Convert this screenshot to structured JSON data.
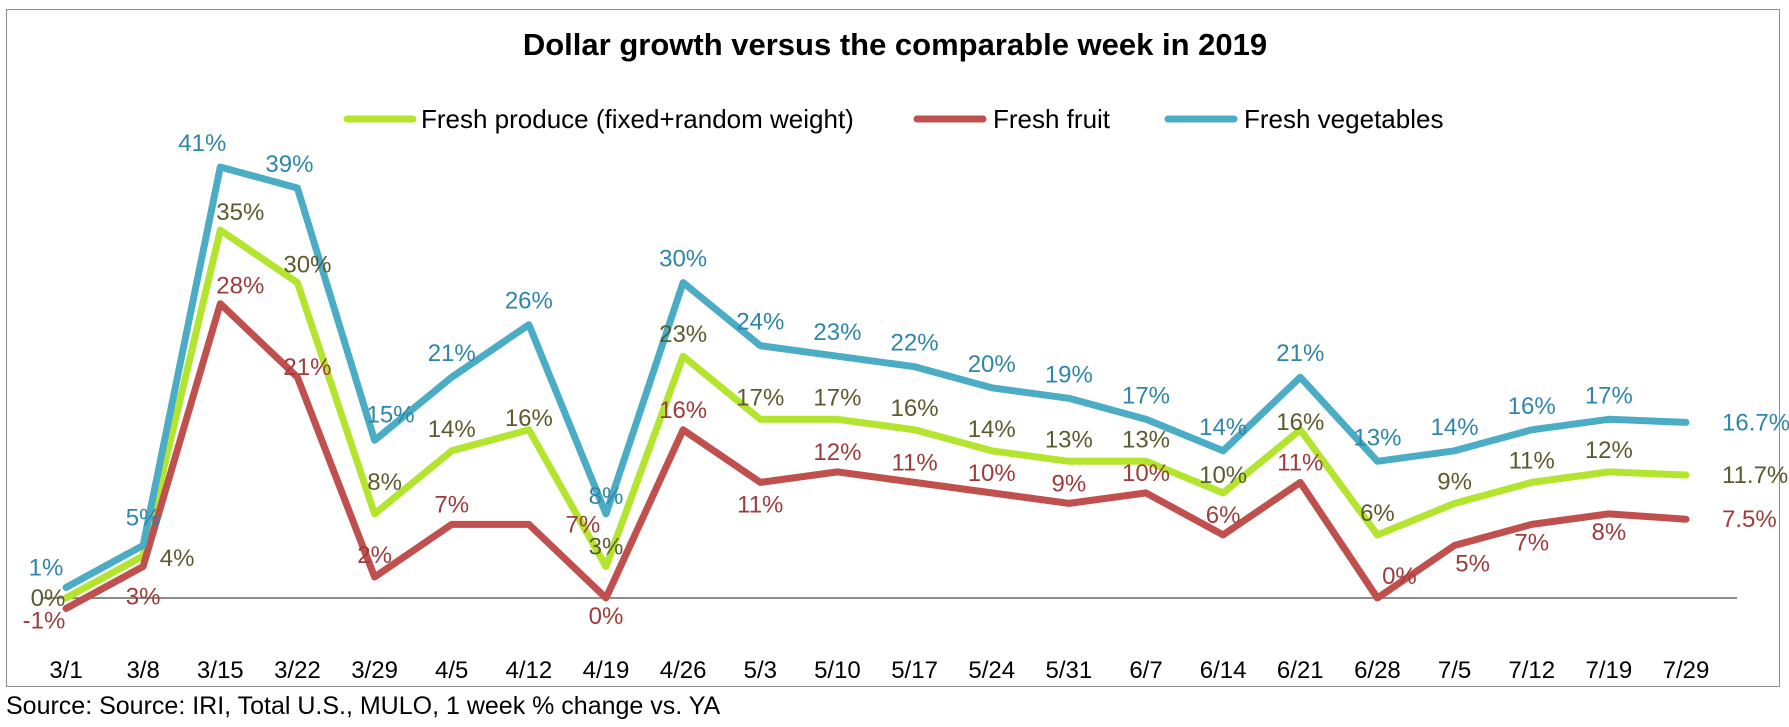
{
  "chart_data": {
    "type": "line",
    "title": "Dollar growth versus the comparable week in 2019",
    "categories": [
      "3/1",
      "3/8",
      "3/15",
      "3/22",
      "3/29",
      "4/5",
      "4/12",
      "4/19",
      "4/26",
      "5/3",
      "5/10",
      "5/17",
      "5/24",
      "5/31",
      "6/7",
      "6/14",
      "6/21",
      "6/28",
      "7/5",
      "7/12",
      "7/19",
      "7/29"
    ],
    "series": [
      {
        "name": "Fresh produce (fixed+random weight)",
        "color": "#b3e52f",
        "label_color": "#5c5a2e",
        "values": [
          0,
          4,
          35,
          30,
          8,
          14,
          16,
          3,
          23,
          17,
          17,
          16,
          14,
          13,
          13,
          10,
          16,
          6,
          9,
          11,
          12,
          11.7
        ],
        "labels": [
          "0%",
          "4%",
          "35%",
          "30%",
          "8%",
          "14%",
          "16%",
          "3%",
          "23%",
          "17%",
          "17%",
          "16%",
          "14%",
          "13%",
          "13%",
          "10%",
          "16%",
          "6%",
          "9%",
          "11%",
          "12%",
          "11.7%"
        ]
      },
      {
        "name": "Fresh fruit",
        "color": "#c0504d",
        "label_color": "#9e3b3b",
        "values": [
          -1,
          3,
          28,
          21,
          2,
          7,
          7,
          0,
          16,
          11,
          12,
          11,
          10,
          9,
          10,
          6,
          11,
          0,
          5,
          7,
          8,
          7.5
        ],
        "labels": [
          "-1%",
          "3%",
          "28%",
          "21%",
          "2%",
          "7%",
          "7%",
          "0%",
          "16%",
          "11%",
          "12%",
          "11%",
          "10%",
          "9%",
          "10%",
          "6%",
          "11%",
          "0%",
          "5%",
          "7%",
          "8%",
          "7.5%"
        ]
      },
      {
        "name": "Fresh vegetables",
        "color": "#4bacc6",
        "label_color": "#2f86a8",
        "values": [
          1,
          5,
          41,
          39,
          15,
          21,
          26,
          8,
          30,
          24,
          23,
          22,
          20,
          19,
          17,
          14,
          21,
          13,
          14,
          16,
          17,
          16.7
        ],
        "labels": [
          "1%",
          "5%",
          "41%",
          "39%",
          "15%",
          "21%",
          "26%",
          "8%",
          "30%",
          "24%",
          "23%",
          "22%",
          "20%",
          "19%",
          "17%",
          "14%",
          "21%",
          "13%",
          "14%",
          "16%",
          "17%",
          "16.7%"
        ]
      }
    ],
    "ylim": [
      -3,
      44
    ],
    "grid": false,
    "legend_position": "top"
  },
  "source": "Source: Source: IRI, Total U.S., MULO, 1 week % change vs. YA",
  "colors": {
    "zero_line": "#8c8c8c",
    "frame": "#8c8c8c"
  }
}
